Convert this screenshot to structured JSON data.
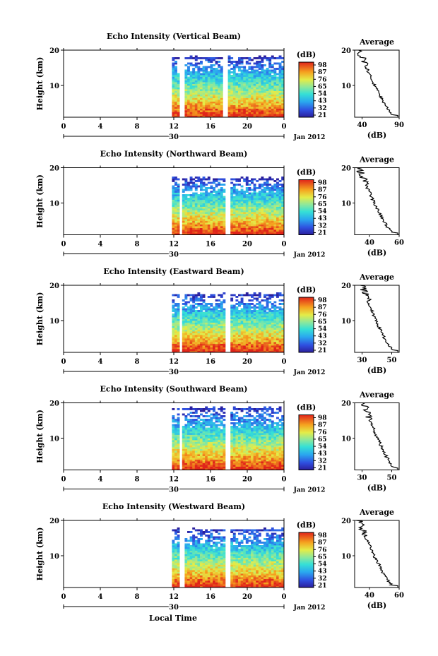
{
  "figure": {
    "xlabel": "Local Time",
    "month_label": "Jan 2012",
    "day_label": "30",
    "colorbar_unit": "(dB)",
    "colorbar_ticks": [
      "98",
      "87",
      "76",
      "65",
      "54",
      "43",
      "32",
      "21"
    ],
    "profile_title": "Average",
    "profile_xlabel": "(dB)"
  },
  "chart_data": [
    {
      "type": "heatmap",
      "title": "Echo Intensity (Vertical Beam)",
      "xlabel": "Local Time",
      "ylabel": "Height (km)",
      "xlim": [
        0,
        24
      ],
      "xticks": [
        "0",
        "4",
        "8",
        "12",
        "16",
        "20",
        "0"
      ],
      "ylim": [
        1,
        20
      ],
      "yticks": [
        "10",
        "20"
      ],
      "colorbar": {
        "label": "(dB)",
        "range": [
          21,
          98
        ],
        "ticks": [
          98,
          87,
          76,
          65,
          54,
          43,
          32,
          21
        ]
      },
      "data_start_hour": 11.8,
      "gaps_hours": [
        [
          12.4,
          13.0
        ],
        [
          17.3,
          17.8
        ]
      ],
      "echo_top_km": 18.5,
      "profile": {
        "xlim": [
          30,
          90
        ],
        "xticks": [
          "40",
          "90"
        ],
        "surface_db": 85,
        "top_db": 36
      }
    },
    {
      "type": "heatmap",
      "title": "Echo Intensity (Northward Beam)",
      "xlabel": "Local Time",
      "ylabel": "Height (km)",
      "xlim": [
        0,
        24
      ],
      "xticks": [
        "0",
        "4",
        "8",
        "12",
        "16",
        "20",
        "0"
      ],
      "ylim": [
        1,
        20
      ],
      "yticks": [
        "10",
        "20"
      ],
      "colorbar": {
        "label": "(dB)",
        "range": [
          21,
          98
        ],
        "ticks": [
          98,
          87,
          76,
          65,
          54,
          43,
          32,
          21
        ]
      },
      "data_start_hour": 11.8,
      "gaps_hours": [
        [
          12.4,
          12.9
        ],
        [
          17.6,
          18.1
        ]
      ],
      "echo_top_km": 17.5,
      "profile": {
        "xlim": [
          30,
          60
        ],
        "xticks": [
          "40",
          "60"
        ],
        "surface_db": 57,
        "top_db": 33
      }
    },
    {
      "type": "heatmap",
      "title": "Echo Intensity (Eastward Beam)",
      "xlabel": "Local Time",
      "ylabel": "Height (km)",
      "xlim": [
        0,
        24
      ],
      "xticks": [
        "0",
        "4",
        "8",
        "12",
        "16",
        "20",
        "0"
      ],
      "ylim": [
        1,
        20
      ],
      "yticks": [
        "10",
        "20"
      ],
      "colorbar": {
        "label": "(dB)",
        "range": [
          21,
          98
        ],
        "ticks": [
          98,
          87,
          76,
          65,
          54,
          43,
          32,
          21
        ]
      },
      "data_start_hour": 11.8,
      "gaps_hours": [
        [
          12.4,
          12.9
        ],
        [
          17.6,
          18.1
        ]
      ],
      "echo_top_km": 18.0,
      "profile": {
        "xlim": [
          25,
          55
        ],
        "xticks": [
          "30",
          "50"
        ],
        "surface_db": 52,
        "top_db": 30
      }
    },
    {
      "type": "heatmap",
      "title": "Echo Intensity (Southward Beam)",
      "xlabel": "Local Time",
      "ylabel": "Height (km)",
      "xlim": [
        0,
        24
      ],
      "xticks": [
        "0",
        "4",
        "8",
        "12",
        "16",
        "20",
        "0"
      ],
      "ylim": [
        1,
        20
      ],
      "yticks": [
        "10",
        "20"
      ],
      "colorbar": {
        "label": "(dB)",
        "range": [
          21,
          98
        ],
        "ticks": [
          98,
          87,
          76,
          65,
          54,
          43,
          32,
          21
        ]
      },
      "data_start_hour": 11.8,
      "gaps_hours": [
        [
          12.4,
          12.9
        ],
        [
          17.6,
          18.1
        ]
      ],
      "echo_top_km": 19.0,
      "profile": {
        "xlim": [
          25,
          55
        ],
        "xticks": [
          "30",
          "50"
        ],
        "surface_db": 53,
        "top_db": 31
      }
    },
    {
      "type": "heatmap",
      "title": "Echo Intensity (Westward Beam)",
      "xlabel": "Local Time",
      "ylabel": "Height (km)",
      "xlim": [
        0,
        24
      ],
      "xticks": [
        "0",
        "4",
        "8",
        "12",
        "16",
        "20",
        "0"
      ],
      "ylim": [
        1,
        20
      ],
      "yticks": [
        "10",
        "20"
      ],
      "colorbar": {
        "label": "(dB)",
        "range": [
          21,
          98
        ],
        "ticks": [
          98,
          87,
          76,
          65,
          54,
          43,
          32,
          21
        ]
      },
      "data_start_hour": 11.8,
      "gaps_hours": [
        [
          12.4,
          13.0
        ],
        [
          17.6,
          18.1
        ]
      ],
      "echo_top_km": 18.0,
      "profile": {
        "xlim": [
          30,
          60
        ],
        "xticks": [
          "40",
          "60"
        ],
        "surface_db": 57,
        "top_db": 33
      }
    }
  ]
}
